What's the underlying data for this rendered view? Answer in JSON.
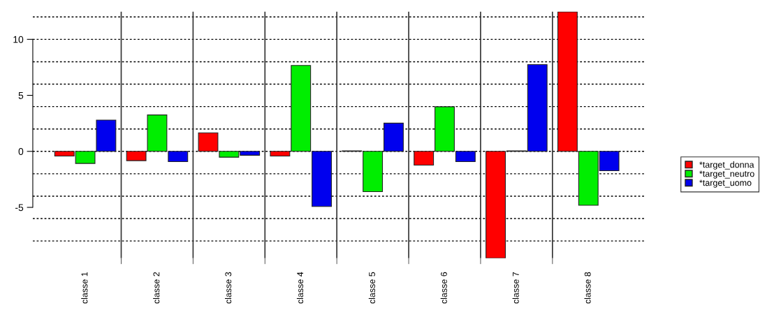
{
  "chart_data": {
    "type": "bar",
    "categories": [
      "classe 1",
      "classe 2",
      "classe 3",
      "classe 4",
      "classe 5",
      "classe 6",
      "classe 7",
      "classe 8"
    ],
    "series": [
      {
        "name": "*target_donna",
        "color": "#ff0000",
        "values": [
          -0.42,
          -0.83,
          1.65,
          -0.42,
          0.05,
          -1.23,
          -9.54,
          12.46
        ]
      },
      {
        "name": "*target_neutro",
        "color": "#00ee00",
        "values": [
          -1.08,
          3.25,
          -0.52,
          7.67,
          -3.6,
          3.98,
          0.05,
          -4.81
        ]
      },
      {
        "name": "*target_uomo",
        "color": "#0000ee",
        "values": [
          2.79,
          -0.92,
          -0.35,
          -4.92,
          2.52,
          -0.92,
          7.75,
          -1.73
        ]
      }
    ],
    "ylim": [
      -9.54,
      12.46
    ],
    "yticks": [
      -5,
      0,
      5,
      10
    ],
    "grid": "x",
    "ref_lines": [
      {
        "axis": "y",
        "value": -8,
        "color": "#000000",
        "line_style": "dotted"
      },
      {
        "axis": "y",
        "value": -6,
        "color": "#000000",
        "line_style": "dotted"
      },
      {
        "axis": "y",
        "value": -4,
        "color": "#000000",
        "line_style": "dotted"
      },
      {
        "axis": "y",
        "value": -2,
        "color": "#000000",
        "line_style": "dotted"
      },
      {
        "axis": "y",
        "value": 0,
        "color": "#000000",
        "line_style": "dotted"
      },
      {
        "axis": "y",
        "value": 2,
        "color": "#000000",
        "line_style": "dotted"
      },
      {
        "axis": "y",
        "value": 4,
        "color": "#000000",
        "line_style": "dotted"
      },
      {
        "axis": "y",
        "value": 6,
        "color": "#000000",
        "line_style": "dotted"
      },
      {
        "axis": "y",
        "value": 8,
        "color": "#000000",
        "line_style": "dotted"
      },
      {
        "axis": "y",
        "value": 10,
        "color": "#000000",
        "line_style": "dotted"
      },
      {
        "axis": "y",
        "value": 12,
        "color": "#000000",
        "line_style": "dotted"
      }
    ],
    "legend": "right"
  }
}
